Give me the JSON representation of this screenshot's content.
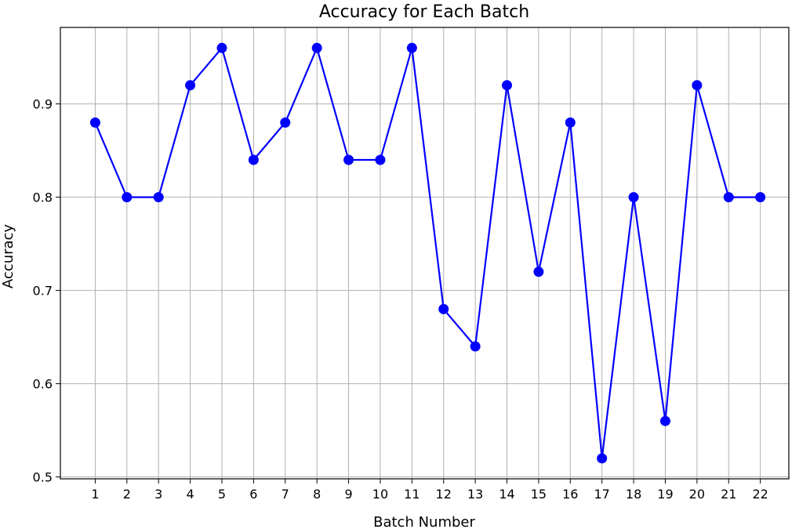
{
  "chart_data": {
    "type": "line",
    "title": "Accuracy for Each Batch",
    "xlabel": "Batch Number",
    "ylabel": "Accuracy",
    "x": [
      1,
      2,
      3,
      4,
      5,
      6,
      7,
      8,
      9,
      10,
      11,
      12,
      13,
      14,
      15,
      16,
      17,
      18,
      19,
      20,
      21,
      22
    ],
    "x_tick_labels": [
      "1",
      "2",
      "3",
      "4",
      "5",
      "6",
      "7",
      "8",
      "9",
      "10",
      "11",
      "12",
      "13",
      "14",
      "15",
      "16",
      "17",
      "18",
      "19",
      "20",
      "21",
      "22"
    ],
    "y_tick_values": [
      0.5,
      0.6,
      0.7,
      0.8,
      0.9
    ],
    "y_tick_labels": [
      "0.5",
      "0.6",
      "0.7",
      "0.8",
      "0.9"
    ],
    "series": [
      {
        "values": [
          0.88,
          0.8,
          0.8,
          0.92,
          0.96,
          0.84,
          0.88,
          0.96,
          0.84,
          0.84,
          0.96,
          0.68,
          0.64,
          0.92,
          0.72,
          0.88,
          0.52,
          0.8,
          0.56,
          0.92,
          0.8,
          0.8
        ],
        "color": "#0000ff",
        "marker": "circle"
      }
    ],
    "xlim": [
      -0.1,
      22.9
    ],
    "ylim": [
      0.498,
      0.982
    ],
    "grid": true,
    "legend": "none"
  }
}
